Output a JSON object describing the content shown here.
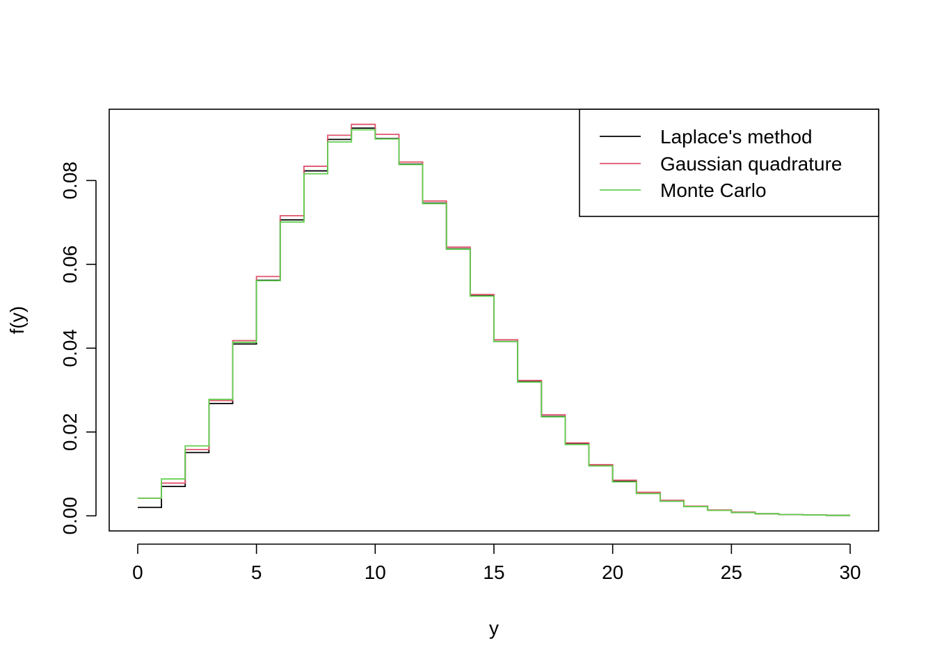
{
  "chart_data": {
    "type": "line",
    "xlabel": "y",
    "ylabel": "f(y)",
    "xlim": [
      -1.2,
      31.2
    ],
    "ylim": [
      -0.0036,
      0.097
    ],
    "x_ticks": [
      0,
      5,
      10,
      15,
      20,
      25,
      30
    ],
    "x_tick_labels": [
      "0",
      "5",
      "10",
      "15",
      "20",
      "25",
      "30"
    ],
    "y_ticks": [
      0.0,
      0.02,
      0.04,
      0.06,
      0.08
    ],
    "y_tick_labels": [
      "0.00",
      "0.02",
      "0.04",
      "0.06",
      "0.08"
    ],
    "grid": false,
    "legend_position": "top-right",
    "step_type": "post",
    "x": [
      0,
      1,
      2,
      3,
      4,
      5,
      6,
      7,
      8,
      9,
      10,
      11,
      12,
      13,
      14,
      15,
      16,
      17,
      18,
      19,
      20,
      21,
      22,
      23,
      24,
      25,
      26,
      27,
      28,
      29,
      30
    ],
    "series": [
      {
        "name": "Laplace's method",
        "color": "#000000",
        "values": [
          0.002,
          0.007,
          0.0151,
          0.0268,
          0.041,
          0.0562,
          0.0706,
          0.0823,
          0.0898,
          0.0925,
          0.09,
          0.0839,
          0.0746,
          0.0637,
          0.0525,
          0.0416,
          0.032,
          0.0237,
          0.0171,
          0.012,
          0.0082,
          0.0054,
          0.0035,
          0.0022,
          0.0014,
          0.0008,
          0.0005,
          0.0003,
          0.0002,
          0.0001,
          0.0001
        ]
      },
      {
        "name": "Gaussian quadrature",
        "color": "#DF536B",
        "values": [
          0.0042,
          0.0078,
          0.0158,
          0.0275,
          0.0418,
          0.0571,
          0.0716,
          0.0834,
          0.0908,
          0.0934,
          0.091,
          0.0844,
          0.0751,
          0.0641,
          0.0528,
          0.042,
          0.0323,
          0.0241,
          0.0174,
          0.0122,
          0.0085,
          0.0056,
          0.0037,
          0.0023,
          0.0014,
          0.0009,
          0.0005,
          0.0003,
          0.0002,
          0.0001,
          0.0001
        ]
      },
      {
        "name": "Monte Carlo",
        "color": "#61D04F",
        "values": [
          0.0042,
          0.0088,
          0.0167,
          0.0278,
          0.0414,
          0.0561,
          0.0701,
          0.0816,
          0.0892,
          0.0921,
          0.0899,
          0.0838,
          0.0745,
          0.0636,
          0.0524,
          0.0416,
          0.0319,
          0.0236,
          0.017,
          0.0119,
          0.0081,
          0.0053,
          0.0035,
          0.0022,
          0.0013,
          0.0008,
          0.0005,
          0.0003,
          0.0002,
          0.0001,
          0.0001
        ]
      }
    ]
  }
}
